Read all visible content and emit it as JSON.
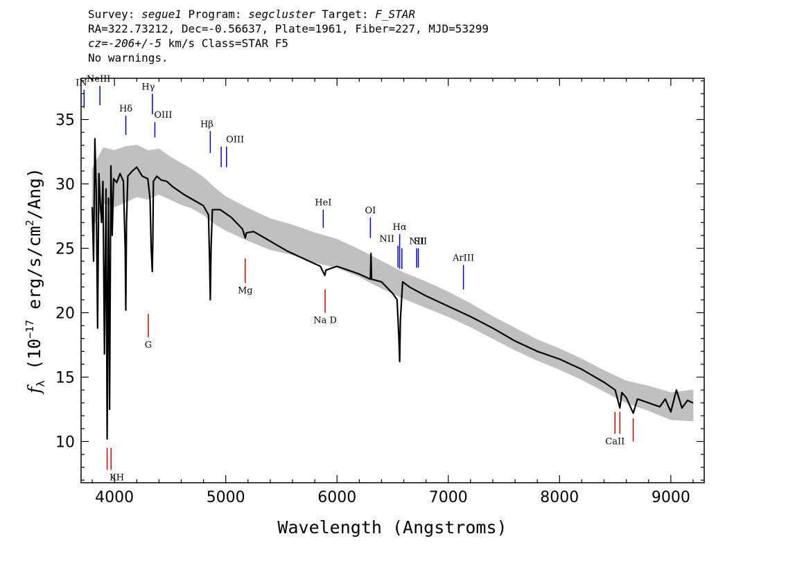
{
  "header": {
    "line1": {
      "survey_label": "Survey: ",
      "survey": "segue1",
      "program_label": " Program: ",
      "program": "segcluster",
      "target_label": " Target: ",
      "target": "F_STAR"
    },
    "line2": "RA=322.73212, Dec=-0.56637, Plate=1961, Fiber=227, MJD=53299",
    "line3": {
      "cz": "cz=-206+/-5",
      "rest": " km/s Class=STAR F5"
    },
    "line4": "No warnings."
  },
  "chart_data": {
    "type": "line",
    "xlabel": "Wavelength (Angstroms)",
    "ylabel": "f_λ (10^-17 erg/s/cm^2/Ang)",
    "ylabel_parts": {
      "f": "f",
      "sub": "λ",
      "pre": " (10",
      "exp": "−17",
      "mid": " erg/s/cm",
      "exp2": "2",
      "post": "/Ang)"
    },
    "xlim": [
      3700,
      9300
    ],
    "ylim": [
      6.8,
      38.2
    ],
    "xticks": [
      4000,
      5000,
      6000,
      7000,
      8000,
      9000
    ],
    "xtick_labels": [
      "4000",
      "5000",
      "6000",
      "7000",
      "8000",
      "9000"
    ],
    "yticks": [
      10,
      15,
      20,
      25,
      30,
      35
    ],
    "ytick_labels": [
      "10",
      "15",
      "20",
      "25",
      "30",
      "35"
    ],
    "series": [
      {
        "style": "error band",
        "color": "#c0c0c0",
        "x": [
          3800,
          3900,
          4000,
          4100,
          4200,
          4300,
          4400,
          4500,
          4600,
          4700,
          4800,
          4900,
          5000,
          5200,
          5400,
          5600,
          5800,
          6000,
          6200,
          6400,
          6600,
          6800,
          7000,
          7200,
          7400,
          7600,
          7800,
          8000,
          8200,
          8400,
          8600,
          8800,
          9000,
          9200
        ],
        "lower": [
          26.5,
          28.5,
          28.2,
          28.6,
          29.0,
          28.8,
          29.2,
          28.8,
          28.4,
          28.1,
          27.6,
          26.9,
          26.4,
          25.6,
          24.9,
          24.5,
          23.9,
          23.5,
          22.8,
          21.9,
          21.1,
          20.4,
          19.7,
          18.9,
          18.0,
          17.1,
          16.3,
          15.6,
          14.8,
          13.9,
          13.0,
          12.4,
          11.7,
          11.6
        ],
        "upper": [
          31.2,
          32.8,
          32.6,
          32.9,
          33.0,
          32.6,
          32.7,
          32.1,
          31.6,
          31.1,
          30.5,
          29.7,
          29.0,
          28.1,
          27.3,
          26.8,
          26.2,
          25.7,
          24.9,
          24.0,
          23.1,
          22.4,
          21.6,
          20.7,
          19.7,
          18.8,
          17.9,
          17.2,
          16.4,
          15.5,
          14.7,
          14.3,
          13.8,
          14.0
        ]
      },
      {
        "style": "flux",
        "color": "#000000",
        "x": [
          3800,
          3812,
          3824,
          3836,
          3848,
          3860,
          3872,
          3884,
          3896,
          3910,
          3924,
          3934,
          3946,
          3956,
          3968,
          3980,
          3992,
          4020,
          4050,
          4080,
          4096,
          4102,
          4108,
          4120,
          4160,
          4200,
          4250,
          4300,
          4320,
          4330,
          4340,
          4345,
          4350,
          4380,
          4420,
          4470,
          4520,
          4570,
          4620,
          4680,
          4740,
          4800,
          4845,
          4855,
          4861,
          4868,
          4880,
          4950,
          5050,
          5150,
          5175,
          5185,
          5250,
          5350,
          5450,
          5550,
          5650,
          5750,
          5850,
          5890,
          5900,
          6000,
          6100,
          6200,
          6300,
          6305,
          6310,
          6400,
          6500,
          6540,
          6556,
          6563,
          6570,
          6590,
          6650,
          6800,
          7000,
          7200,
          7400,
          7600,
          7800,
          8000,
          8200,
          8400,
          8500,
          8542,
          8560,
          8600,
          8662,
          8700,
          8800,
          8900,
          8950,
          9000,
          9050,
          9100,
          9150,
          9200
        ],
        "y": [
          28.2,
          24.0,
          33.5,
          29.5,
          18.8,
          30.8,
          28.6,
          27.0,
          30.2,
          16.8,
          29.6,
          10.2,
          28.9,
          12.5,
          31.4,
          26.0,
          30.4,
          30.1,
          30.8,
          30.2,
          25.0,
          20.2,
          27.0,
          30.6,
          31.0,
          31.3,
          30.6,
          30.4,
          28.8,
          25.0,
          23.2,
          25.5,
          30.2,
          30.6,
          30.3,
          30.2,
          29.8,
          29.5,
          29.2,
          28.9,
          28.6,
          28.3,
          27.6,
          24.0,
          21.0,
          25.0,
          28.0,
          28.0,
          27.4,
          26.5,
          25.8,
          26.2,
          26.3,
          25.8,
          25.3,
          24.8,
          24.4,
          24.0,
          23.6,
          22.9,
          23.3,
          23.6,
          23.3,
          23.0,
          22.6,
          24.6,
          22.6,
          22.4,
          21.5,
          21.0,
          18.0,
          16.2,
          19.5,
          22.4,
          22.0,
          21.3,
          20.5,
          19.7,
          18.8,
          17.8,
          17.0,
          16.4,
          15.6,
          14.6,
          14.0,
          12.6,
          13.8,
          13.4,
          12.2,
          13.3,
          13.0,
          12.7,
          13.3,
          12.3,
          14.0,
          12.6,
          13.2,
          13.0
        ]
      }
    ],
    "emission_lines": [
      {
        "label": "IN",
        "x": 3727,
        "y_top": 37.3,
        "y_bottom": 35.9,
        "color": "#0000cc",
        "label_dx": -4
      },
      {
        "label": "NeIII",
        "x": 3869,
        "y_top": 37.6,
        "y_bottom": 36.1,
        "color": "#0000cc",
        "label_dx": -2
      },
      {
        "label": "Hδ",
        "x": 4102,
        "y_top": 35.3,
        "y_bottom": 33.8,
        "color": "#0000cc",
        "label_dx": 0
      },
      {
        "label": "Hγ",
        "x": 4341,
        "y_top": 37.0,
        "y_bottom": 35.4,
        "color": "#0000cc",
        "label_dx": -6
      },
      {
        "label": "OIII",
        "x": 4363,
        "y_top": 34.8,
        "y_bottom": 33.6,
        "color": "#0000cc",
        "label_dx": 12
      },
      {
        "label": "Hβ",
        "x": 4861,
        "y_top": 34.1,
        "y_bottom": 32.4,
        "color": "#0000cc",
        "label_dx": -5
      },
      {
        "label": "OIII",
        "x": 4959,
        "y_top": 32.9,
        "y_bottom": 31.3,
        "color": "#0000cc",
        "label_dx": 20
      },
      {
        "label": "",
        "x": 5007,
        "y_top": 32.9,
        "y_bottom": 31.3,
        "color": "#0000cc",
        "label_dx": 0
      },
      {
        "label": "HeI",
        "x": 5876,
        "y_top": 28.0,
        "y_bottom": 26.6,
        "color": "#0000cc",
        "label_dx": 0
      },
      {
        "label": "OI",
        "x": 6300,
        "y_top": 27.4,
        "y_bottom": 25.8,
        "color": "#0000cc",
        "label_dx": 0
      },
      {
        "label": "NII",
        "x": 6548,
        "y_top": 25.2,
        "y_bottom": 23.5,
        "color": "#0000cc",
        "label_dx": -16
      },
      {
        "label": "Hα",
        "x": 6563,
        "y_top": 26.1,
        "y_bottom": 23.4,
        "color": "#0000cc",
        "label_dx": 0
      },
      {
        "label": "",
        "x": 6583,
        "y_top": 25.0,
        "y_bottom": 23.4,
        "color": "#0000cc",
        "label_dx": 0
      },
      {
        "label": "NII",
        "x": 6716,
        "y_top": 25.0,
        "y_bottom": 23.5,
        "color": "#0000cc",
        "label_dx": 0
      },
      {
        "label": "SII",
        "x": 6731,
        "y_top": 25.0,
        "y_bottom": 23.5,
        "color": "#0000cc",
        "label_dx": 3
      },
      {
        "label": "ArIII",
        "x": 7136,
        "y_top": 23.7,
        "y_bottom": 21.8,
        "color": "#0000cc",
        "label_dx": 0
      }
    ],
    "absorption_lines": [
      {
        "label": "KH",
        "x": 3934,
        "y_top": 9.5,
        "y_bottom": 7.8,
        "color": "#cc0000",
        "label_dx": 14
      },
      {
        "label": "",
        "x": 3969,
        "y_top": 9.5,
        "y_bottom": 7.8,
        "color": "#cc0000",
        "label_dx": 0
      },
      {
        "label": "G",
        "x": 4304,
        "y_top": 19.9,
        "y_bottom": 18.1,
        "color": "#cc0000",
        "label_dx": 0
      },
      {
        "label": "Mg",
        "x": 5175,
        "y_top": 24.2,
        "y_bottom": 22.3,
        "color": "#cc0000",
        "label_dx": 0
      },
      {
        "label": "Na D",
        "x": 5893,
        "y_top": 21.8,
        "y_bottom": 20.0,
        "color": "#cc0000",
        "label_dx": 0
      },
      {
        "label": "CaII",
        "x": 8498,
        "y_top": 12.3,
        "y_bottom": 10.6,
        "color": "#cc0000",
        "label_dx": 0
      },
      {
        "label": "",
        "x": 8542,
        "y_top": 12.3,
        "y_bottom": 10.6,
        "color": "#cc0000",
        "label_dx": 0
      },
      {
        "label": "",
        "x": 8662,
        "y_top": 11.8,
        "y_bottom": 10.0,
        "color": "#cc0000",
        "label_dx": 0
      }
    ],
    "grid": false
  }
}
